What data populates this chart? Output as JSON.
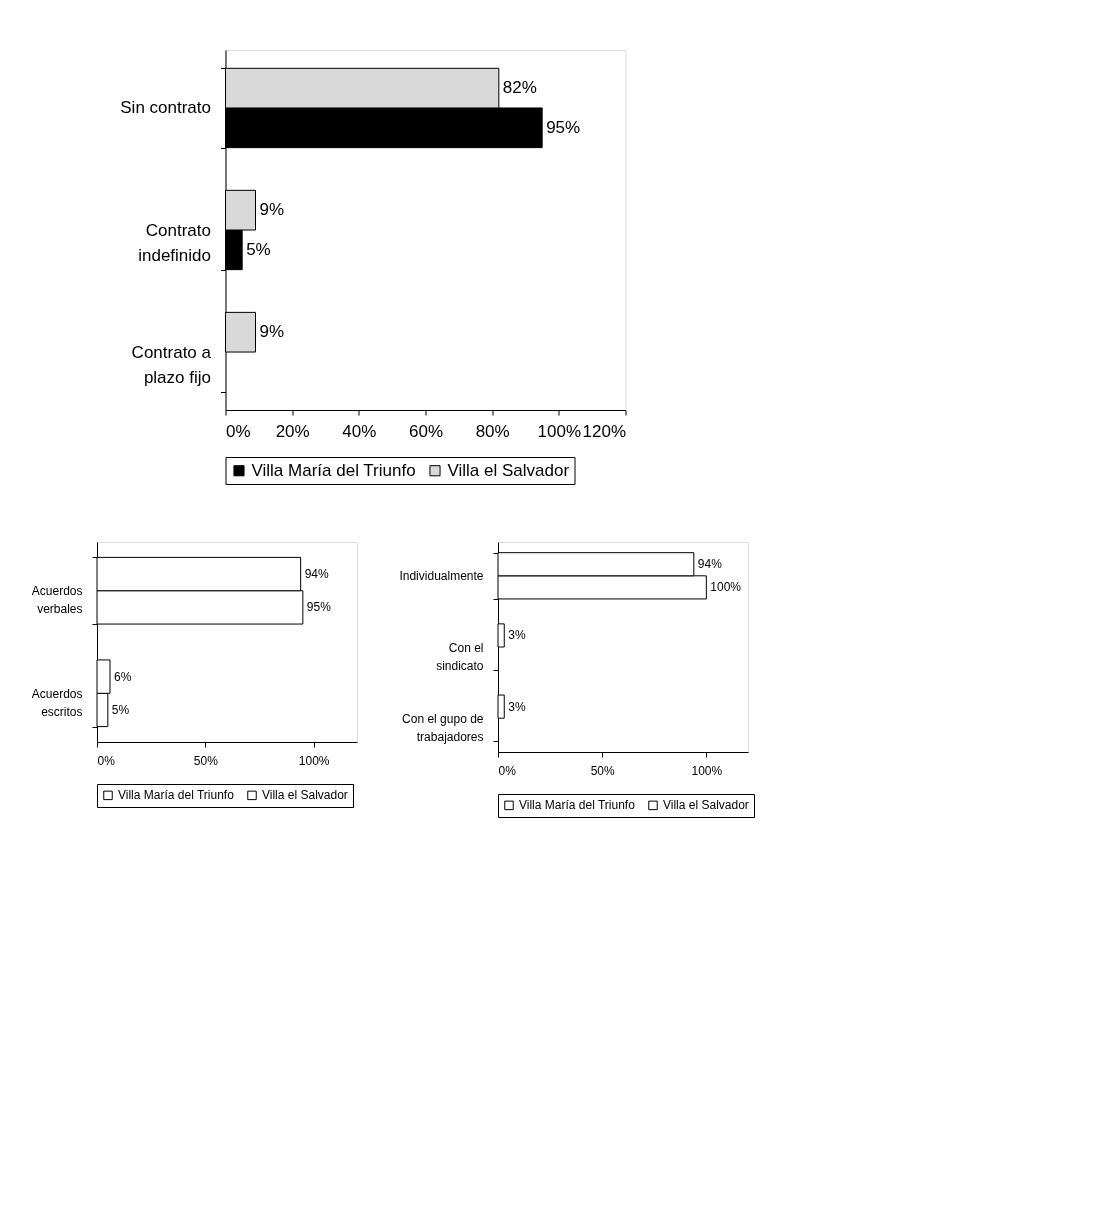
{
  "chart_data": [
    {
      "type": "bar",
      "orientation": "horizontal",
      "categories": [
        "Sin contrato",
        "Contrato indefinido",
        "Contrato a plazo fijo"
      ],
      "series": [
        {
          "name": "Villa María del Triunfo",
          "color": "#000000",
          "values": [
            95,
            5,
            null
          ],
          "value_labels": [
            "95%",
            "5%",
            null
          ]
        },
        {
          "name": "Villa el Salvador",
          "color": "#d9d9d9",
          "values": [
            82,
            9,
            9
          ],
          "value_labels": [
            "82%",
            "9%",
            "9%"
          ]
        }
      ],
      "xlim": [
        0,
        120
      ],
      "xticks": [
        {
          "value": 0,
          "label": "0%"
        },
        {
          "value": 20,
          "label": "20%"
        },
        {
          "value": 40,
          "label": "40%"
        },
        {
          "value": 60,
          "label": "60%"
        },
        {
          "value": 80,
          "label": "80%"
        },
        {
          "value": 100,
          "label": "100%"
        },
        {
          "value": 120,
          "label": "120%"
        }
      ],
      "grid": false,
      "legend": "bottom"
    },
    {
      "type": "bar",
      "orientation": "horizontal",
      "categories": [
        "Acuerdos verbales",
        "Acuerdos escritos"
      ],
      "series": [
        {
          "name": "Villa María del Triunfo",
          "color": "#ffffff",
          "values": [
            95,
            5
          ],
          "value_labels": [
            "95%",
            "5%"
          ]
        },
        {
          "name": "Villa el Salvador",
          "color": "#ffffff",
          "values": [
            94,
            6
          ],
          "value_labels": [
            "94%",
            "6%"
          ]
        }
      ],
      "xlim": [
        0,
        120
      ],
      "xticks": [
        {
          "value": 0,
          "label": "0%"
        },
        {
          "value": 50,
          "label": "50%"
        },
        {
          "value": 100,
          "label": "100%"
        }
      ],
      "grid": false,
      "legend": "bottom"
    },
    {
      "type": "bar",
      "orientation": "horizontal",
      "categories": [
        "Individualmente",
        "Con el sindicato",
        "Con el gupo de trabajadores"
      ],
      "series": [
        {
          "name": "Villa María del Triunfo",
          "color": "#ffffff",
          "values": [
            100,
            null,
            null
          ],
          "value_labels": [
            "100%",
            null,
            null
          ]
        },
        {
          "name": "Villa el Salvador",
          "color": "#ffffff",
          "values": [
            94,
            3,
            3
          ],
          "value_labels": [
            "94%",
            "3%",
            "3%"
          ]
        }
      ],
      "xlim": [
        0,
        120
      ],
      "xticks": [
        {
          "value": 0,
          "label": "0%"
        },
        {
          "value": 50,
          "label": "50%"
        },
        {
          "value": 100,
          "label": "100%"
        }
      ],
      "grid": false,
      "legend": "bottom"
    }
  ]
}
